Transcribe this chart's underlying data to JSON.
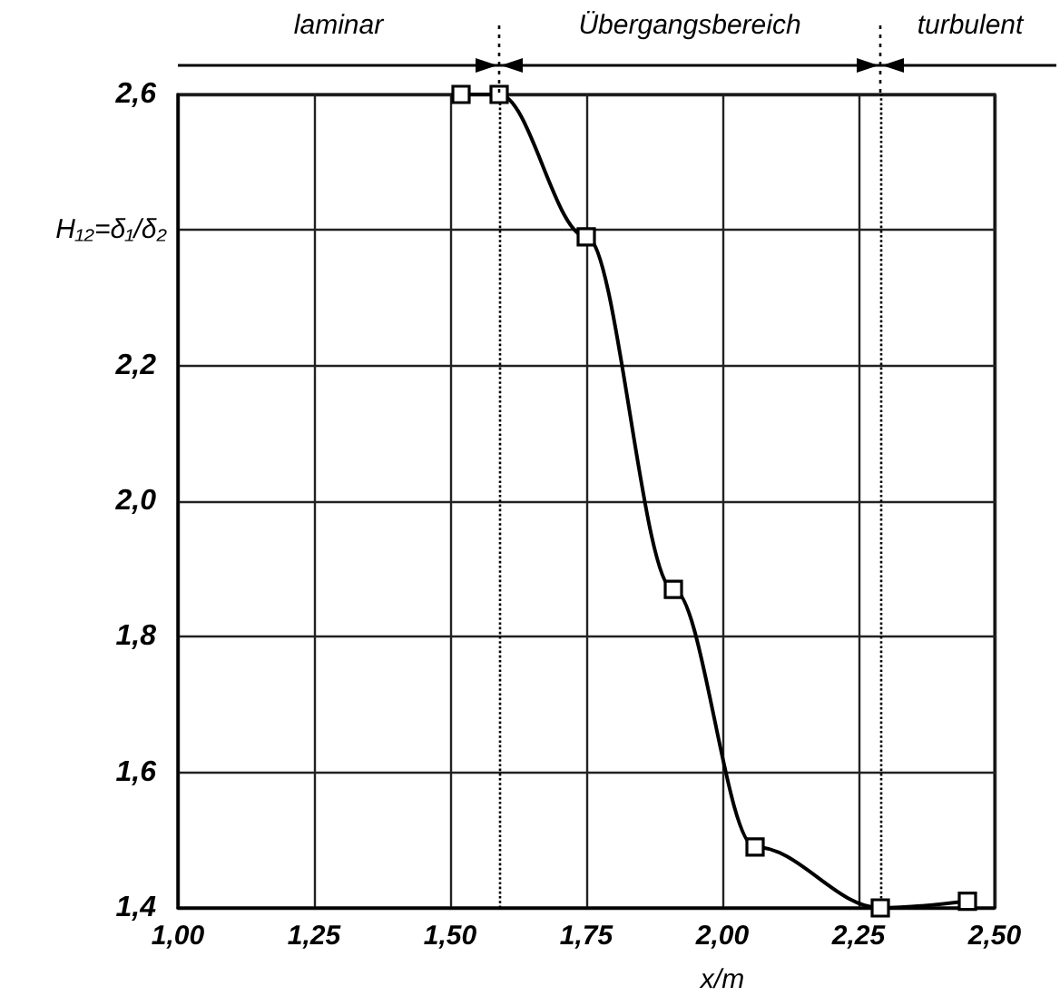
{
  "chart_data": {
    "type": "line",
    "ylabel": "H₁₂=δ₁/δ₂",
    "xlabel": "x/m",
    "x": [
      1.52,
      1.59,
      1.75,
      1.91,
      2.06,
      2.29,
      2.45
    ],
    "series": [
      {
        "color": "#000000",
        "values": [
          2.6,
          2.6,
          2.39,
          1.87,
          1.49,
          1.4,
          1.41
        ]
      }
    ],
    "marker": "square",
    "line_style": "solid",
    "grid": true,
    "xlim": [
      1.0,
      2.5
    ],
    "ylim": [
      1.4,
      2.6
    ],
    "xticks": [
      {
        "value": 1.0,
        "label": "1,00"
      },
      {
        "value": 1.25,
        "label": "1,25"
      },
      {
        "value": 1.5,
        "label": "1,50"
      },
      {
        "value": 1.75,
        "label": "1,75"
      },
      {
        "value": 2.0,
        "label": "2,00"
      },
      {
        "value": 2.25,
        "label": "2,25"
      },
      {
        "value": 2.5,
        "label": "2,50"
      }
    ],
    "yticks": [
      {
        "value": 1.4,
        "label": "1,4"
      },
      {
        "value": 1.6,
        "label": "1,6"
      },
      {
        "value": 1.8,
        "label": "1,8"
      },
      {
        "value": 2.0,
        "label": "2,0"
      },
      {
        "value": 2.2,
        "label": "2,2"
      },
      {
        "value": 2.4,
        "label": null
      },
      {
        "value": 2.6,
        "label": "2,6"
      }
    ],
    "ref_lines": [
      {
        "axis": "x",
        "value": 1.59,
        "line_style": "dotted"
      },
      {
        "axis": "x",
        "value": 2.29,
        "line_style": "dotted"
      }
    ],
    "annotations": [
      "laminar",
      "Übergangsbereich",
      "turbulent"
    ]
  }
}
